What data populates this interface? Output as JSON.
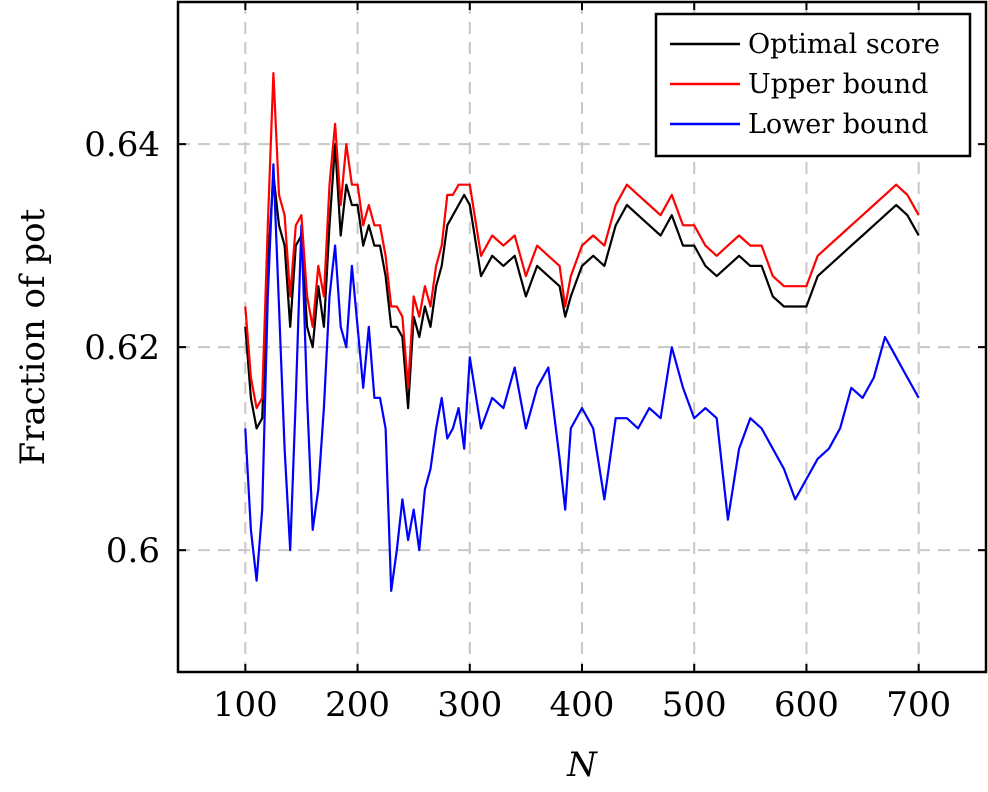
{
  "chart_data": {
    "type": "line",
    "title": "",
    "xlabel": "N",
    "ylabel": "Fraction of pot",
    "xlim": [
      40,
      760
    ],
    "ylim": [
      0.588,
      0.654
    ],
    "x_ticks": [
      100,
      200,
      300,
      400,
      500,
      600,
      700
    ],
    "x_tick_labels": [
      "100",
      "200",
      "300",
      "400",
      "500",
      "600",
      "700"
    ],
    "y_ticks": [
      0.6,
      0.62,
      0.64
    ],
    "y_tick_labels": [
      "0.6",
      "0.62",
      "0.64"
    ],
    "grid": true,
    "legend_position": "top-right",
    "series": [
      {
        "name": "Optimal score",
        "color": "#000000",
        "x": [
          100,
          105,
          110,
          115,
          120,
          125,
          130,
          135,
          140,
          145,
          150,
          155,
          160,
          165,
          170,
          175,
          180,
          185,
          190,
          195,
          200,
          205,
          210,
          215,
          220,
          225,
          230,
          235,
          240,
          245,
          250,
          255,
          260,
          265,
          270,
          275,
          280,
          285,
          290,
          295,
          300,
          310,
          320,
          330,
          340,
          350,
          360,
          370,
          380,
          385,
          390,
          400,
          410,
          420,
          430,
          440,
          450,
          460,
          470,
          480,
          490,
          500,
          510,
          520,
          530,
          540,
          550,
          560,
          570,
          580,
          590,
          600,
          610,
          620,
          630,
          640,
          650,
          660,
          670,
          680,
          690,
          700
        ],
        "values": [
          0.622,
          0.615,
          0.612,
          0.613,
          0.628,
          0.637,
          0.632,
          0.63,
          0.622,
          0.63,
          0.631,
          0.622,
          0.62,
          0.626,
          0.622,
          0.632,
          0.64,
          0.631,
          0.636,
          0.634,
          0.634,
          0.63,
          0.632,
          0.63,
          0.63,
          0.627,
          0.622,
          0.622,
          0.621,
          0.614,
          0.623,
          0.621,
          0.624,
          0.622,
          0.626,
          0.628,
          0.632,
          0.633,
          0.634,
          0.635,
          0.634,
          0.627,
          0.629,
          0.628,
          0.629,
          0.625,
          0.628,
          0.627,
          0.626,
          0.623,
          0.625,
          0.628,
          0.629,
          0.628,
          0.632,
          0.634,
          0.633,
          0.632,
          0.631,
          0.633,
          0.63,
          0.63,
          0.628,
          0.627,
          0.628,
          0.629,
          0.628,
          0.628,
          0.625,
          0.624,
          0.624,
          0.624,
          0.627,
          0.628,
          0.629,
          0.63,
          0.631,
          0.632,
          0.633,
          0.634,
          0.633,
          0.631
        ]
      },
      {
        "name": "Upper bound",
        "color": "#ff0000",
        "x": [
          100,
          105,
          110,
          115,
          120,
          125,
          130,
          135,
          140,
          145,
          150,
          155,
          160,
          165,
          170,
          175,
          180,
          185,
          190,
          195,
          200,
          205,
          210,
          215,
          220,
          225,
          230,
          235,
          240,
          245,
          250,
          255,
          260,
          265,
          270,
          275,
          280,
          285,
          290,
          295,
          300,
          310,
          320,
          330,
          340,
          350,
          360,
          370,
          380,
          385,
          390,
          400,
          410,
          420,
          430,
          440,
          450,
          460,
          470,
          480,
          490,
          500,
          510,
          520,
          530,
          540,
          550,
          560,
          570,
          580,
          590,
          600,
          610,
          620,
          630,
          640,
          650,
          660,
          670,
          680,
          690,
          700
        ],
        "values": [
          0.624,
          0.617,
          0.614,
          0.615,
          0.632,
          0.647,
          0.635,
          0.633,
          0.625,
          0.632,
          0.633,
          0.625,
          0.622,
          0.628,
          0.625,
          0.636,
          0.642,
          0.634,
          0.64,
          0.636,
          0.636,
          0.632,
          0.634,
          0.632,
          0.632,
          0.629,
          0.624,
          0.624,
          0.623,
          0.616,
          0.625,
          0.623,
          0.626,
          0.624,
          0.628,
          0.63,
          0.635,
          0.635,
          0.636,
          0.636,
          0.636,
          0.629,
          0.631,
          0.63,
          0.631,
          0.627,
          0.63,
          0.629,
          0.628,
          0.624,
          0.627,
          0.63,
          0.631,
          0.63,
          0.634,
          0.636,
          0.635,
          0.634,
          0.633,
          0.635,
          0.632,
          0.632,
          0.63,
          0.629,
          0.63,
          0.631,
          0.63,
          0.63,
          0.627,
          0.626,
          0.626,
          0.626,
          0.629,
          0.63,
          0.631,
          0.632,
          0.633,
          0.634,
          0.635,
          0.636,
          0.635,
          0.633
        ]
      },
      {
        "name": "Lower bound",
        "color": "#0000ff",
        "x": [
          100,
          105,
          110,
          115,
          120,
          125,
          130,
          135,
          140,
          145,
          150,
          155,
          160,
          165,
          170,
          175,
          180,
          185,
          190,
          195,
          200,
          205,
          210,
          215,
          220,
          225,
          230,
          235,
          240,
          245,
          250,
          255,
          260,
          265,
          270,
          275,
          280,
          285,
          290,
          295,
          300,
          310,
          320,
          330,
          340,
          350,
          360,
          370,
          380,
          385,
          390,
          400,
          410,
          420,
          430,
          440,
          450,
          460,
          470,
          480,
          490,
          500,
          510,
          520,
          530,
          540,
          550,
          560,
          570,
          580,
          590,
          600,
          610,
          620,
          630,
          640,
          650,
          660,
          670,
          680,
          690,
          700
        ],
        "values": [
          0.612,
          0.602,
          0.597,
          0.604,
          0.625,
          0.638,
          0.624,
          0.61,
          0.6,
          0.615,
          0.632,
          0.615,
          0.602,
          0.606,
          0.614,
          0.625,
          0.63,
          0.622,
          0.62,
          0.628,
          0.622,
          0.616,
          0.622,
          0.615,
          0.615,
          0.612,
          0.596,
          0.6,
          0.605,
          0.601,
          0.604,
          0.6,
          0.606,
          0.608,
          0.612,
          0.615,
          0.611,
          0.612,
          0.614,
          0.61,
          0.619,
          0.612,
          0.615,
          0.614,
          0.618,
          0.612,
          0.616,
          0.618,
          0.609,
          0.604,
          0.612,
          0.614,
          0.612,
          0.605,
          0.613,
          0.613,
          0.612,
          0.614,
          0.613,
          0.62,
          0.616,
          0.613,
          0.614,
          0.613,
          0.603,
          0.61,
          0.613,
          0.612,
          0.61,
          0.608,
          0.605,
          0.607,
          0.609,
          0.61,
          0.612,
          0.616,
          0.615,
          0.617,
          0.621,
          0.619,
          0.617,
          0.615
        ]
      }
    ]
  }
}
